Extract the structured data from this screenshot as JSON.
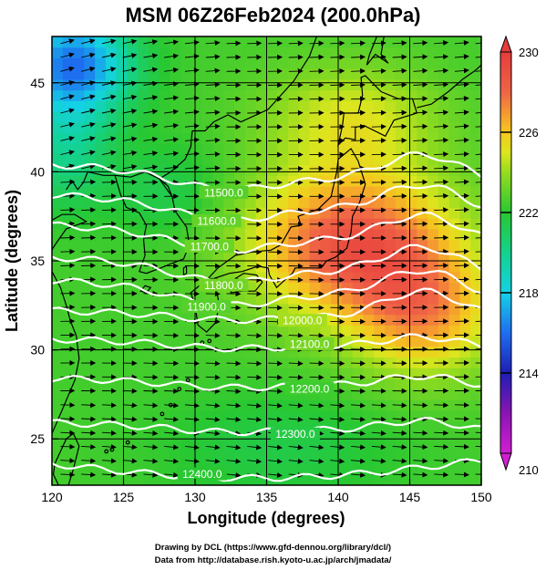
{
  "title": "MSM 06Z26Feb2024 (200.0hPa)",
  "chart_data": {
    "type": "heatmap",
    "title": "MSM 06Z26Feb2024 (200.0hPa)",
    "xlabel": "Longitude (degrees)",
    "ylabel": "Latitude  (degrees)",
    "xlim": [
      120,
      150
    ],
    "ylim": [
      22.4,
      47.6
    ],
    "x_ticks": [
      "120",
      "125",
      "130",
      "135",
      "140",
      "145",
      "150"
    ],
    "y_ticks": [
      "25",
      "30",
      "35",
      "40",
      "45"
    ],
    "x_tick_values": [
      120,
      125,
      130,
      135,
      140,
      145,
      150
    ],
    "y_tick_values": [
      25,
      30,
      35,
      40,
      45
    ],
    "colorbar": {
      "min": 210,
      "max": 230,
      "tick_labels": [
        "210",
        "214",
        "218",
        "222",
        "226",
        "230"
      ],
      "tick_values": [
        210,
        214,
        218,
        222,
        226,
        230
      ]
    },
    "color_stops": [
      {
        "value": 210,
        "color": "#d21ed2"
      },
      {
        "value": 212,
        "color": "#8a14b4"
      },
      {
        "value": 214,
        "color": "#1e1eb4"
      },
      {
        "value": 216,
        "color": "#1e6ef0"
      },
      {
        "value": 218,
        "color": "#14d2e6"
      },
      {
        "value": 220,
        "color": "#14d28c"
      },
      {
        "value": 222,
        "color": "#28c832"
      },
      {
        "value": 224,
        "color": "#96dc1e"
      },
      {
        "value": 225,
        "color": "#dce61e"
      },
      {
        "value": 226,
        "color": "#f5c81e"
      },
      {
        "value": 227,
        "color": "#f59632"
      },
      {
        "value": 228,
        "color": "#f06446"
      },
      {
        "value": 230,
        "color": "#e63c3c"
      }
    ],
    "height_contours": [
      {
        "label": "11500.0",
        "value": 11500
      },
      {
        "label": "11600.0",
        "value": 11600
      },
      {
        "label": "11700.0",
        "value": 11700
      },
      {
        "label": "11800.0",
        "value": 11800
      },
      {
        "label": "11900.0",
        "value": 11900
      },
      {
        "label": "12000.0",
        "value": 12000
      },
      {
        "label": "12100.0",
        "value": 12100
      },
      {
        "label": "12200.0",
        "value": 12200
      },
      {
        "label": "12300.0",
        "value": 12300
      },
      {
        "label": "12400.0",
        "value": 12400
      }
    ],
    "vector_field": "wind vectors (predominantly westerly)",
    "grid": true
  },
  "credits": {
    "line1": "Drawing by DCL (https://www.gfd-dennou.org/library/dcl/)",
    "line2": "Data from http://database.rish.kyoto-u.ac.jp/arch/jmadata/"
  }
}
